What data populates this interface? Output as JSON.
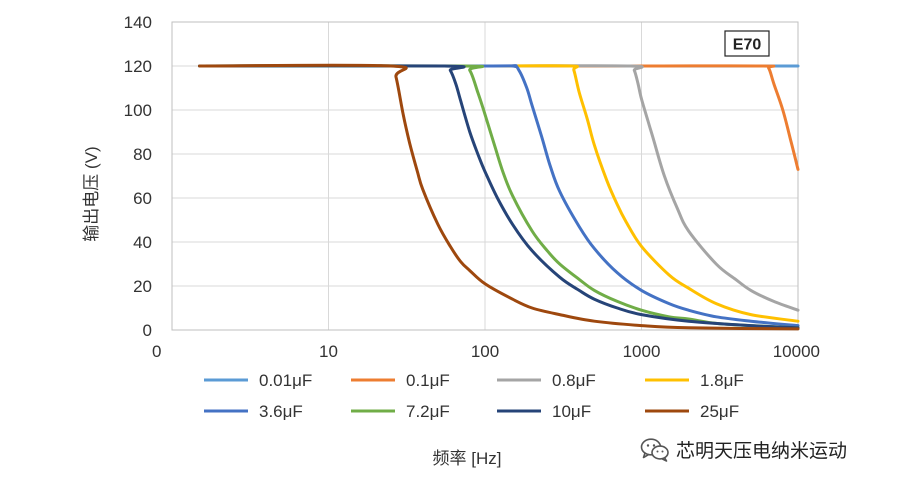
{
  "chart_data": {
    "type": "line",
    "badge": "E70",
    "xlabel": "频率 [Hz]",
    "ylabel": "输出电压 (V)",
    "x_scale": "log",
    "xlim": [
      1,
      10000
    ],
    "ylim": [
      0,
      140
    ],
    "x_ticks": [
      "0",
      "10",
      "100",
      "1000",
      "10000"
    ],
    "y_ticks": [
      "0",
      "20",
      "40",
      "60",
      "80",
      "100",
      "120",
      "140"
    ],
    "grid": true,
    "legend_position": "bottom",
    "series": [
      {
        "name": "0.01μF",
        "color": "#5b9bd5",
        "points": [
          [
            1.5,
            120
          ],
          [
            10,
            120
          ],
          [
            100,
            120
          ],
          [
            1000,
            120
          ],
          [
            10000,
            120
          ]
        ]
      },
      {
        "name": "0.1μF",
        "color": "#ed7d31",
        "points": [
          [
            1.5,
            120
          ],
          [
            100,
            120
          ],
          [
            1000,
            120
          ],
          [
            6000,
            120
          ],
          [
            6500,
            119
          ],
          [
            7000,
            112
          ],
          [
            8000,
            100
          ],
          [
            9000,
            86
          ],
          [
            10000,
            73
          ]
        ]
      },
      {
        "name": "0.8μF",
        "color": "#a5a5a5",
        "points": [
          [
            1.5,
            120
          ],
          [
            100,
            120
          ],
          [
            850,
            120
          ],
          [
            900,
            118
          ],
          [
            950,
            112
          ],
          [
            1000,
            105
          ],
          [
            1100,
            95
          ],
          [
            1200,
            86
          ],
          [
            1400,
            70
          ],
          [
            1700,
            55
          ],
          [
            2000,
            45
          ],
          [
            3000,
            30
          ],
          [
            4000,
            23
          ],
          [
            5000,
            18
          ],
          [
            7000,
            13
          ],
          [
            10000,
            9
          ]
        ]
      },
      {
        "name": "1.8μF",
        "color": "#ffc000",
        "points": [
          [
            1.5,
            120
          ],
          [
            100,
            120
          ],
          [
            350,
            120
          ],
          [
            370,
            118
          ],
          [
            400,
            108
          ],
          [
            450,
            96
          ],
          [
            500,
            84
          ],
          [
            600,
            68
          ],
          [
            700,
            57
          ],
          [
            800,
            49
          ],
          [
            1000,
            38
          ],
          [
            1500,
            25
          ],
          [
            2000,
            19
          ],
          [
            3000,
            12
          ],
          [
            5000,
            7
          ],
          [
            10000,
            4
          ]
        ]
      },
      {
        "name": "3.6μF",
        "color": "#4472c4",
        "points": [
          [
            1.5,
            120
          ],
          [
            100,
            120
          ],
          [
            150,
            120
          ],
          [
            165,
            118
          ],
          [
            185,
            110
          ],
          [
            200,
            102
          ],
          [
            230,
            88
          ],
          [
            260,
            75
          ],
          [
            300,
            63
          ],
          [
            400,
            47
          ],
          [
            500,
            37
          ],
          [
            700,
            26
          ],
          [
            1000,
            18
          ],
          [
            1500,
            12
          ],
          [
            2000,
            9
          ],
          [
            3000,
            6
          ],
          [
            5000,
            4
          ],
          [
            10000,
            2
          ]
        ]
      },
      {
        "name": "7.2μF",
        "color": "#70ad47",
        "points": [
          [
            1.5,
            120
          ],
          [
            70,
            120
          ],
          [
            80,
            118
          ],
          [
            90,
            108
          ],
          [
            100,
            98
          ],
          [
            115,
            84
          ],
          [
            130,
            72
          ],
          [
            150,
            61
          ],
          [
            200,
            45
          ],
          [
            250,
            36
          ],
          [
            300,
            30
          ],
          [
            400,
            23
          ],
          [
            500,
            18
          ],
          [
            700,
            13
          ],
          [
            1000,
            9
          ],
          [
            1500,
            6
          ],
          [
            2000,
            5
          ],
          [
            3000,
            3
          ],
          [
            5000,
            2
          ],
          [
            10000,
            1
          ]
        ]
      },
      {
        "name": "10μF",
        "color": "#264478",
        "points": [
          [
            1.5,
            120
          ],
          [
            55,
            120
          ],
          [
            60,
            118
          ],
          [
            65,
            112
          ],
          [
            70,
            104
          ],
          [
            80,
            90
          ],
          [
            90,
            80
          ],
          [
            100,
            72
          ],
          [
            120,
            60
          ],
          [
            150,
            48
          ],
          [
            200,
            36
          ],
          [
            300,
            24
          ],
          [
            400,
            18
          ],
          [
            500,
            14
          ],
          [
            700,
            10
          ],
          [
            1000,
            7
          ],
          [
            2000,
            4
          ],
          [
            5000,
            2
          ],
          [
            10000,
            1
          ]
        ]
      },
      {
        "name": "25μF",
        "color": "#9e480e",
        "points": [
          [
            1.5,
            120
          ],
          [
            25,
            120
          ],
          [
            27,
            115
          ],
          [
            30,
            98
          ],
          [
            33,
            85
          ],
          [
            37,
            72
          ],
          [
            40,
            64
          ],
          [
            50,
            48
          ],
          [
            60,
            38
          ],
          [
            70,
            31
          ],
          [
            80,
            27
          ],
          [
            100,
            21
          ],
          [
            150,
            14
          ],
          [
            200,
            10
          ],
          [
            300,
            7
          ],
          [
            500,
            4
          ],
          [
            1000,
            2
          ],
          [
            2000,
            1
          ],
          [
            10000,
            0.5
          ]
        ]
      }
    ]
  },
  "watermark": {
    "text": "芯明天压电纳米运动",
    "icon": "wechat-logo-icon"
  }
}
